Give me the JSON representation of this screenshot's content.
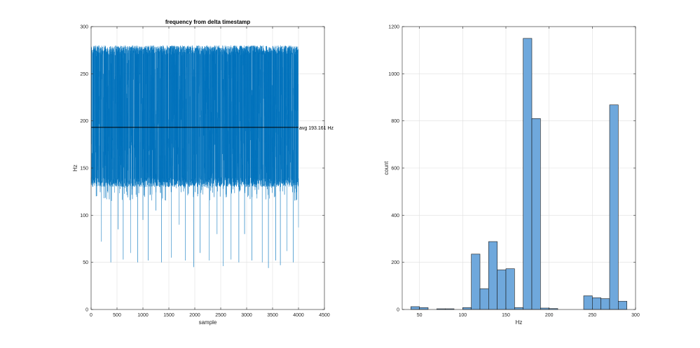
{
  "chart_data": [
    {
      "type": "line",
      "title": "frequency from delta timestamp",
      "xlabel": "sample",
      "ylabel": "Hz",
      "xlim": [
        0,
        4500
      ],
      "ylim": [
        0,
        300
      ],
      "xticks": [
        0,
        500,
        1000,
        1500,
        2000,
        2500,
        3000,
        3500,
        4000,
        4500
      ],
      "yticks": [
        0,
        50,
        100,
        150,
        200,
        250,
        300
      ],
      "grid": true,
      "series_color": "#0072BD",
      "sample_count": 4000,
      "upper_band": [
        270,
        280
      ],
      "lower_band": [
        130,
        140
      ],
      "dense_range": [
        115,
        280
      ],
      "dips": [
        {
          "x": 200,
          "y": 72
        },
        {
          "x": 380,
          "y": 50
        },
        {
          "x": 520,
          "y": 85
        },
        {
          "x": 620,
          "y": 53
        },
        {
          "x": 760,
          "y": 60
        },
        {
          "x": 900,
          "y": 50
        },
        {
          "x": 1000,
          "y": 95
        },
        {
          "x": 1100,
          "y": 52
        },
        {
          "x": 1250,
          "y": 105
        },
        {
          "x": 1360,
          "y": 50
        },
        {
          "x": 1550,
          "y": 55
        },
        {
          "x": 1700,
          "y": 90
        },
        {
          "x": 1820,
          "y": 52
        },
        {
          "x": 1980,
          "y": 45
        },
        {
          "x": 2100,
          "y": 60
        },
        {
          "x": 2280,
          "y": 52
        },
        {
          "x": 2430,
          "y": 80
        },
        {
          "x": 2550,
          "y": 46
        },
        {
          "x": 2700,
          "y": 53
        },
        {
          "x": 2850,
          "y": 50
        },
        {
          "x": 2960,
          "y": 80
        },
        {
          "x": 3100,
          "y": 52
        },
        {
          "x": 3300,
          "y": 50
        },
        {
          "x": 3420,
          "y": 44
        },
        {
          "x": 3560,
          "y": 52
        },
        {
          "x": 3650,
          "y": 47
        },
        {
          "x": 3780,
          "y": 62
        },
        {
          "x": 3900,
          "y": 50
        },
        {
          "x": 4000,
          "y": 87
        }
      ],
      "avg": {
        "value": 193.161,
        "label": "avg 193.161 Hz",
        "color": "#000000"
      }
    },
    {
      "type": "bar",
      "title": "",
      "xlabel": "Hz",
      "ylabel": "count",
      "xlim": [
        30,
        300
      ],
      "ylim": [
        0,
        1200
      ],
      "xticks": [
        50,
        100,
        150,
        200,
        250,
        300
      ],
      "yticks": [
        0,
        200,
        400,
        600,
        800,
        1000,
        1200
      ],
      "grid": true,
      "face_color": "#6FA8DC",
      "edge_color": "#1A1A1A",
      "bin_width": 10,
      "bins": [
        {
          "x0": 40,
          "count": 12
        },
        {
          "x0": 50,
          "count": 8
        },
        {
          "x0": 60,
          "count": 0
        },
        {
          "x0": 70,
          "count": 3
        },
        {
          "x0": 80,
          "count": 3
        },
        {
          "x0": 90,
          "count": 0
        },
        {
          "x0": 100,
          "count": 8
        },
        {
          "x0": 110,
          "count": 235
        },
        {
          "x0": 120,
          "count": 88
        },
        {
          "x0": 130,
          "count": 288
        },
        {
          "x0": 140,
          "count": 168
        },
        {
          "x0": 150,
          "count": 173
        },
        {
          "x0": 160,
          "count": 8
        },
        {
          "x0": 170,
          "count": 1150
        },
        {
          "x0": 180,
          "count": 810
        },
        {
          "x0": 190,
          "count": 6
        },
        {
          "x0": 200,
          "count": 4
        },
        {
          "x0": 210,
          "count": 0
        },
        {
          "x0": 220,
          "count": 0
        },
        {
          "x0": 230,
          "count": 0
        },
        {
          "x0": 240,
          "count": 58
        },
        {
          "x0": 250,
          "count": 50
        },
        {
          "x0": 260,
          "count": 46
        },
        {
          "x0": 270,
          "count": 868
        },
        {
          "x0": 280,
          "count": 35
        }
      ]
    }
  ]
}
